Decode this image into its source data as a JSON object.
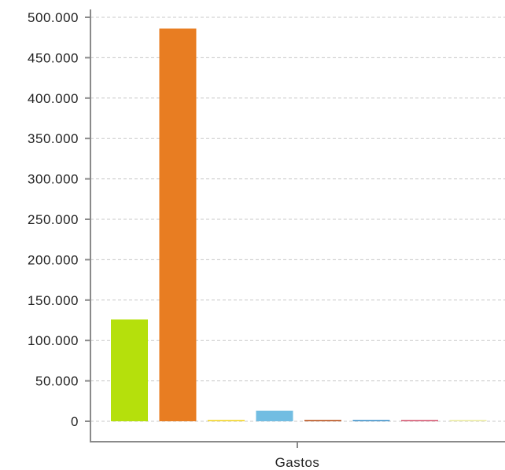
{
  "chart_data": {
    "type": "bar",
    "categories": [
      "Gastos"
    ],
    "series": [
      {
        "values": [
          126000
        ],
        "color": "#b5e00c"
      },
      {
        "values": [
          486000
        ],
        "color": "#e87d22"
      },
      {
        "values": [
          1500
        ],
        "color": "#f2d21a"
      },
      {
        "values": [
          13000
        ],
        "color": "#72bde2"
      },
      {
        "values": [
          1500
        ],
        "color": "#b5470f"
      },
      {
        "values": [
          500
        ],
        "color": "#2f89c6"
      },
      {
        "values": [
          500
        ],
        "color": "#d04a64"
      },
      {
        "values": [
          500
        ],
        "color": "#e8e89a"
      }
    ],
    "ylim": [
      0,
      500000
    ],
    "yticks": [
      {
        "value": 0,
        "label": "0"
      },
      {
        "value": 50000,
        "label": "50.000"
      },
      {
        "value": 100000,
        "label": "100.000"
      },
      {
        "value": 150000,
        "label": "150.000"
      },
      {
        "value": 200000,
        "label": "200.000"
      },
      {
        "value": 250000,
        "label": "250.000"
      },
      {
        "value": 300000,
        "label": "300.000"
      },
      {
        "value": 350000,
        "label": "350.000"
      },
      {
        "value": 400000,
        "label": "400.000"
      },
      {
        "value": 450000,
        "label": "450.000"
      },
      {
        "value": 500000,
        "label": "500.000"
      }
    ],
    "grid": true,
    "legend": "none",
    "title": "",
    "xlabel": "",
    "ylabel": ""
  }
}
